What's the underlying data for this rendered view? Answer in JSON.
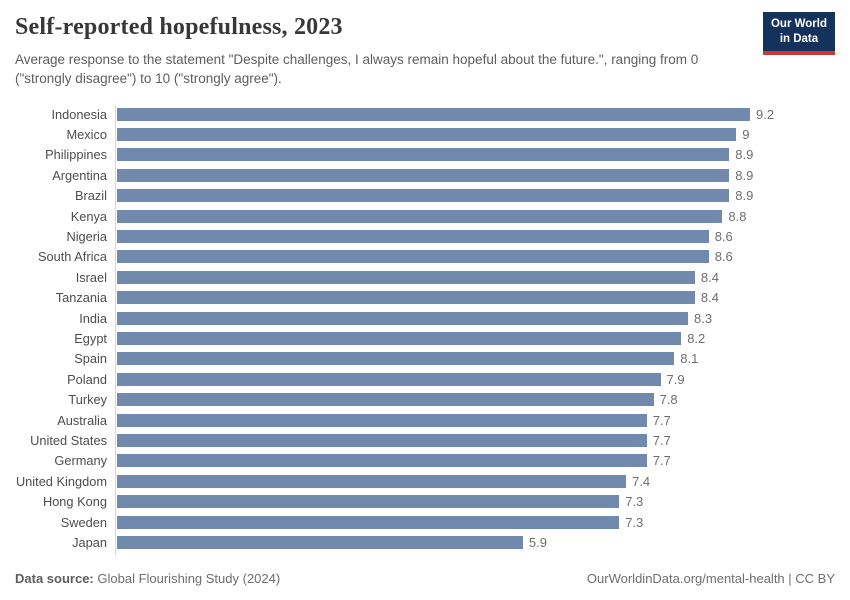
{
  "header": {
    "title": "Self-reported hopefulness, 2023",
    "subtitle": "Average response to the statement \"Despite challenges, I always remain hopeful about the future.\", ranging from 0 (\"strongly disagree\") to 10 (\"strongly agree\").",
    "logo": {
      "line1": "Our World",
      "line2": "in Data"
    }
  },
  "chart_data": {
    "type": "bar",
    "orientation": "horizontal",
    "title": "Self-reported hopefulness, 2023",
    "xlabel": "",
    "ylabel": "",
    "xlim": [
      0,
      9.2
    ],
    "grid": false,
    "legend": false,
    "bar_color": "#7189ad",
    "axis_line_color": "#d7d7d7",
    "categories": [
      "Indonesia",
      "Mexico",
      "Philippines",
      "Argentina",
      "Brazil",
      "Kenya",
      "Nigeria",
      "South Africa",
      "Israel",
      "Tanzania",
      "India",
      "Egypt",
      "Spain",
      "Poland",
      "Turkey",
      "Australia",
      "United States",
      "Germany",
      "United Kingdom",
      "Hong Kong",
      "Sweden",
      "Japan"
    ],
    "values": [
      9.2,
      9,
      8.9,
      8.9,
      8.9,
      8.8,
      8.6,
      8.6,
      8.4,
      8.4,
      8.3,
      8.2,
      8.1,
      7.9,
      7.8,
      7.7,
      7.7,
      7.7,
      7.4,
      7.3,
      7.3,
      5.9
    ],
    "value_labels": [
      "9.2",
      "9",
      "8.9",
      "8.9",
      "8.9",
      "8.8",
      "8.6",
      "8.6",
      "8.4",
      "8.4",
      "8.3",
      "8.2",
      "8.1",
      "7.9",
      "7.8",
      "7.7",
      "7.7",
      "7.7",
      "7.4",
      "7.3",
      "7.3",
      "5.9"
    ]
  },
  "footer": {
    "datasource_label": "Data source:",
    "datasource_value": "Global Flourishing Study (2024)",
    "attribution": "OurWorldinData.org/mental-health | CC BY"
  }
}
